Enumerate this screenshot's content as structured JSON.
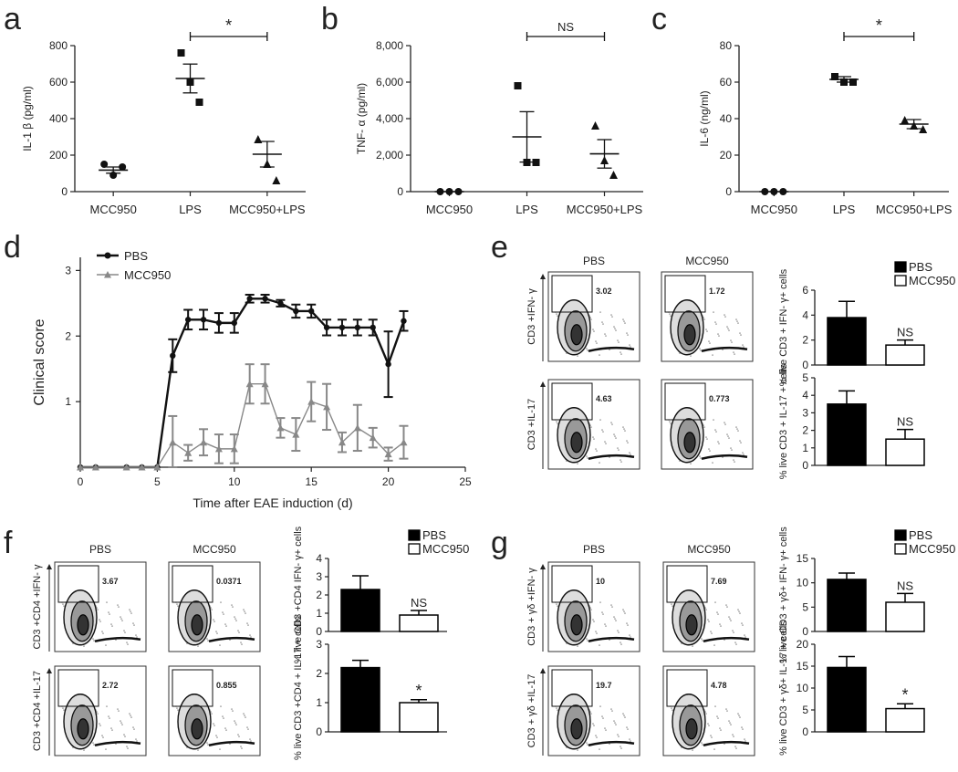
{
  "panels": {
    "a": {
      "letter": "a"
    },
    "b": {
      "letter": "b"
    },
    "c": {
      "letter": "c"
    },
    "d": {
      "letter": "d"
    },
    "e": {
      "letter": "e"
    },
    "f": {
      "letter": "f"
    },
    "g": {
      "letter": "g"
    }
  },
  "flow": {
    "col_pbs": "PBS",
    "col_mcc": "MCC950",
    "e": {
      "ylab_top": "CD3 +IFN- γ",
      "ylab_bottom": "CD3 +IL-17",
      "gates": [
        "3.02",
        "1.72",
        "4.63",
        "0.773"
      ]
    },
    "f": {
      "ylab_top": "CD3 +CD4 +IFN- γ",
      "ylab_bottom": "CD3 +CD4 +IL-17",
      "gates": [
        "3.67",
        "0.0371",
        "2.72",
        "0.855"
      ]
    },
    "g": {
      "ylab_top": "CD3 + γδ +IFN- γ",
      "ylab_bottom": "CD3 + γδ +IL-17",
      "gates": [
        "10",
        "7.69",
        "19.7",
        "4.78"
      ]
    }
  },
  "chart_data": [
    {
      "panel": "a",
      "type": "scatter",
      "ylabel": "IL-1 β (pg/ml)",
      "categories": [
        "MCC950",
        "LPS",
        "MCC950+LPS"
      ],
      "yticks": [
        "0",
        "200",
        "400",
        "600",
        "800"
      ],
      "ylim": [
        0,
        800
      ],
      "points": [
        [
          150,
          90,
          135
        ],
        [
          760,
          600,
          490
        ],
        [
          285,
          150,
          60
        ]
      ],
      "markers": [
        "circle",
        "square",
        "triangle"
      ],
      "means": [
        118,
        620,
        205
      ],
      "sem": [
        17,
        79,
        70
      ],
      "comparison": {
        "from": 1,
        "to": 2,
        "label": "*"
      }
    },
    {
      "panel": "b",
      "type": "scatter",
      "ylabel": "TNF- α (pg/ml)",
      "categories": [
        "MCC950",
        "LPS",
        "MCC950+LPS"
      ],
      "yticks": [
        "0",
        "2,000",
        "4,000",
        "6,000",
        "8,000"
      ],
      "ylim": [
        0,
        8000
      ],
      "points": [
        [
          0,
          0,
          0
        ],
        [
          5800,
          1600,
          1600
        ],
        [
          3600,
          1700,
          900
        ]
      ],
      "markers": [
        "circle",
        "square",
        "triangle"
      ],
      "means": [
        0,
        3000,
        2070
      ],
      "sem": [
        0,
        1380,
        780
      ],
      "comparison": {
        "from": 1,
        "to": 2,
        "label": "NS"
      }
    },
    {
      "panel": "c",
      "type": "scatter",
      "ylabel": "IL-6 (ng/ml)",
      "categories": [
        "MCC950",
        "LPS",
        "MCC950+LPS"
      ],
      "yticks": [
        "0",
        "20",
        "40",
        "60",
        "80"
      ],
      "ylim": [
        0,
        80
      ],
      "points": [
        [
          0,
          0,
          0
        ],
        [
          63,
          60,
          60
        ],
        [
          39,
          36,
          34
        ]
      ],
      "markers": [
        "circle",
        "square",
        "triangle"
      ],
      "means": [
        0,
        61.5,
        37
      ],
      "sem": [
        0,
        1.5,
        2.5
      ],
      "comparison": {
        "from": 1,
        "to": 2,
        "label": "*"
      }
    },
    {
      "panel": "d",
      "type": "line",
      "ylabel": "Clinical score",
      "xlabel": "Time after EAE induction (d)",
      "xticks": [
        "0",
        "5",
        "10",
        "15",
        "20",
        "25"
      ],
      "yticks": [
        "1",
        "2",
        "3"
      ],
      "xlim": [
        0,
        25
      ],
      "ylim": [
        0,
        3.2
      ],
      "series": [
        {
          "name": "PBS",
          "color": "#111111",
          "x": [
            0,
            1,
            3,
            4,
            5,
            6,
            7,
            8,
            9,
            10,
            11,
            12,
            13,
            14,
            15,
            16,
            17,
            18,
            19,
            20,
            21
          ],
          "y": [
            0,
            0,
            0,
            0,
            0,
            1.7,
            2.25,
            2.25,
            2.2,
            2.2,
            2.57,
            2.57,
            2.5,
            2.38,
            2.38,
            2.13,
            2.13,
            2.13,
            2.13,
            1.57,
            2.23
          ],
          "err": [
            0,
            0,
            0,
            0,
            0,
            0.25,
            0.15,
            0.15,
            0.15,
            0.15,
            0.06,
            0.06,
            0.05,
            0.1,
            0.1,
            0.12,
            0.12,
            0.12,
            0.12,
            0.5,
            0.15
          ]
        },
        {
          "name": "MCC950",
          "color": "#888888",
          "x": [
            0,
            1,
            3,
            4,
            5,
            6,
            7,
            8,
            9,
            10,
            11,
            12,
            13,
            14,
            15,
            16,
            17,
            18,
            19,
            20,
            21
          ],
          "y": [
            0,
            0,
            0,
            0,
            0,
            0.38,
            0.22,
            0.38,
            0.28,
            0.28,
            1.27,
            1.27,
            0.6,
            0.5,
            1.0,
            0.92,
            0.38,
            0.6,
            0.45,
            0.2,
            0.38
          ],
          "err": [
            0,
            0,
            0,
            0,
            0,
            0.4,
            0.12,
            0.2,
            0.22,
            0.22,
            0.3,
            0.3,
            0.15,
            0.25,
            0.3,
            0.35,
            0.15,
            0.35,
            0.15,
            0.1,
            0.25
          ]
        }
      ]
    },
    {
      "panel": "e-top",
      "type": "bar",
      "ylabel": "% live CD3 + IFN- γ+ cells",
      "categories": [
        "PBS",
        "MCC950"
      ],
      "values": [
        3.8,
        1.6
      ],
      "err": [
        1.3,
        0.4
      ],
      "yticks": [
        "0",
        "2",
        "4",
        "6"
      ],
      "ylim": [
        0,
        6
      ],
      "label_over": [
        null,
        "NS"
      ],
      "legend": [
        "PBS",
        "MCC950"
      ]
    },
    {
      "panel": "e-bottom",
      "type": "bar",
      "ylabel": "% live CD3 + IL-17 + cells",
      "categories": [
        "PBS",
        "MCC950"
      ],
      "values": [
        3.5,
        1.5
      ],
      "err": [
        0.75,
        0.55
      ],
      "yticks": [
        "0",
        "1",
        "2",
        "3",
        "4",
        "5"
      ],
      "ylim": [
        0,
        5
      ],
      "label_over": [
        null,
        "NS"
      ]
    },
    {
      "panel": "f-top",
      "type": "bar",
      "ylabel": "% live CD3 +CD4 IFN- γ+ cells",
      "categories": [
        "PBS",
        "MCC950"
      ],
      "values": [
        2.3,
        0.9
      ],
      "err": [
        0.75,
        0.25
      ],
      "yticks": [
        "0",
        "1",
        "2",
        "3",
        "4"
      ],
      "ylim": [
        0,
        4
      ],
      "label_over": [
        null,
        "NS"
      ],
      "legend": [
        "PBS",
        "MCC950"
      ]
    },
    {
      "panel": "f-bottom",
      "type": "bar",
      "ylabel": "% live CD3 +CD4 + IL-17 + cells",
      "categories": [
        "PBS",
        "MCC950"
      ],
      "values": [
        2.2,
        1.0
      ],
      "err": [
        0.25,
        0.1
      ],
      "yticks": [
        "0",
        "1",
        "2",
        "3"
      ],
      "ylim": [
        0,
        3
      ],
      "label_over": [
        null,
        "*"
      ]
    },
    {
      "panel": "g-top",
      "type": "bar",
      "ylabel": "% live CD3 + γδ+ IFN- γ+ cells",
      "categories": [
        "PBS",
        "MCC950"
      ],
      "values": [
        10.7,
        6.0
      ],
      "err": [
        1.3,
        1.8
      ],
      "yticks": [
        "0",
        "5",
        "10",
        "15"
      ],
      "ylim": [
        0,
        15
      ],
      "label_over": [
        null,
        "NS"
      ],
      "legend": [
        "PBS",
        "MCC950"
      ]
    },
    {
      "panel": "g-bottom",
      "type": "bar",
      "ylabel": "% live CD3 + γδ+ IL-17 + cells",
      "categories": [
        "PBS",
        "MCC950"
      ],
      "values": [
        14.7,
        5.3
      ],
      "err": [
        2.5,
        1.1
      ],
      "yticks": [
        "0",
        "5",
        "10",
        "15",
        "20"
      ],
      "ylim": [
        0,
        20
      ],
      "label_over": [
        null,
        "*"
      ]
    }
  ]
}
